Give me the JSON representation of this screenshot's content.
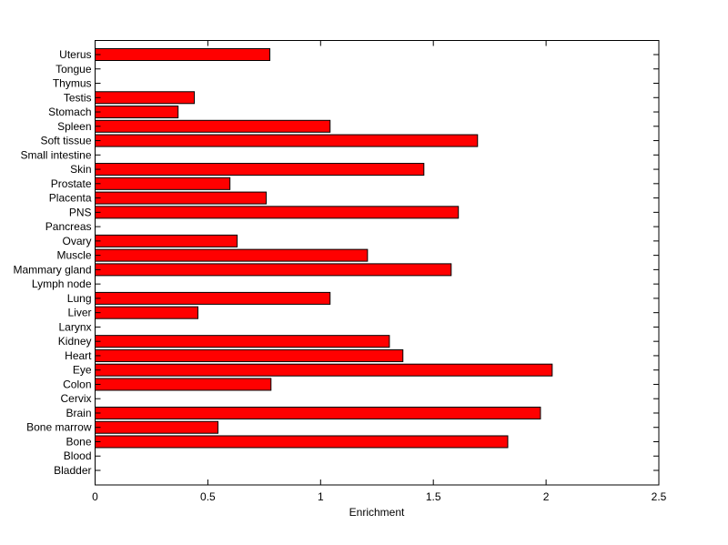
{
  "chart_data": {
    "type": "bar",
    "orientation": "horizontal",
    "title": "",
    "xlabel": "Enrichment",
    "ylabel": "",
    "xlim": [
      0,
      2.5
    ],
    "xticks": [
      "0",
      "0.5",
      "1",
      "1.5",
      "2",
      "2.5"
    ],
    "xtick_values": [
      0,
      0.5,
      1,
      1.5,
      2,
      2.5
    ],
    "grid": false,
    "bar_color": "#ff0000",
    "categories": [
      "Bladder",
      "Blood",
      "Bone",
      "Bone marrow",
      "Brain",
      "Cervix",
      "Colon",
      "Eye",
      "Heart",
      "Kidney",
      "Larynx",
      "Liver",
      "Lung",
      "Lymph node",
      "Mammary gland",
      "Muscle",
      "Ovary",
      "Pancreas",
      "PNS",
      "Placenta",
      "Prostate",
      "Skin",
      "Small intestine",
      "Soft tissue",
      "Spleen",
      "Stomach",
      "Testis",
      "Thymus",
      "Tongue",
      "Uterus"
    ],
    "values": [
      0,
      0,
      1.83,
      0.545,
      1.975,
      0,
      0.78,
      2.027,
      1.365,
      1.305,
      0,
      0.456,
      1.042,
      0,
      1.579,
      1.208,
      0.63,
      0,
      1.611,
      0.759,
      0.598,
      1.458,
      0,
      1.696,
      1.042,
      0.368,
      0.44,
      0,
      0,
      0.775
    ]
  }
}
